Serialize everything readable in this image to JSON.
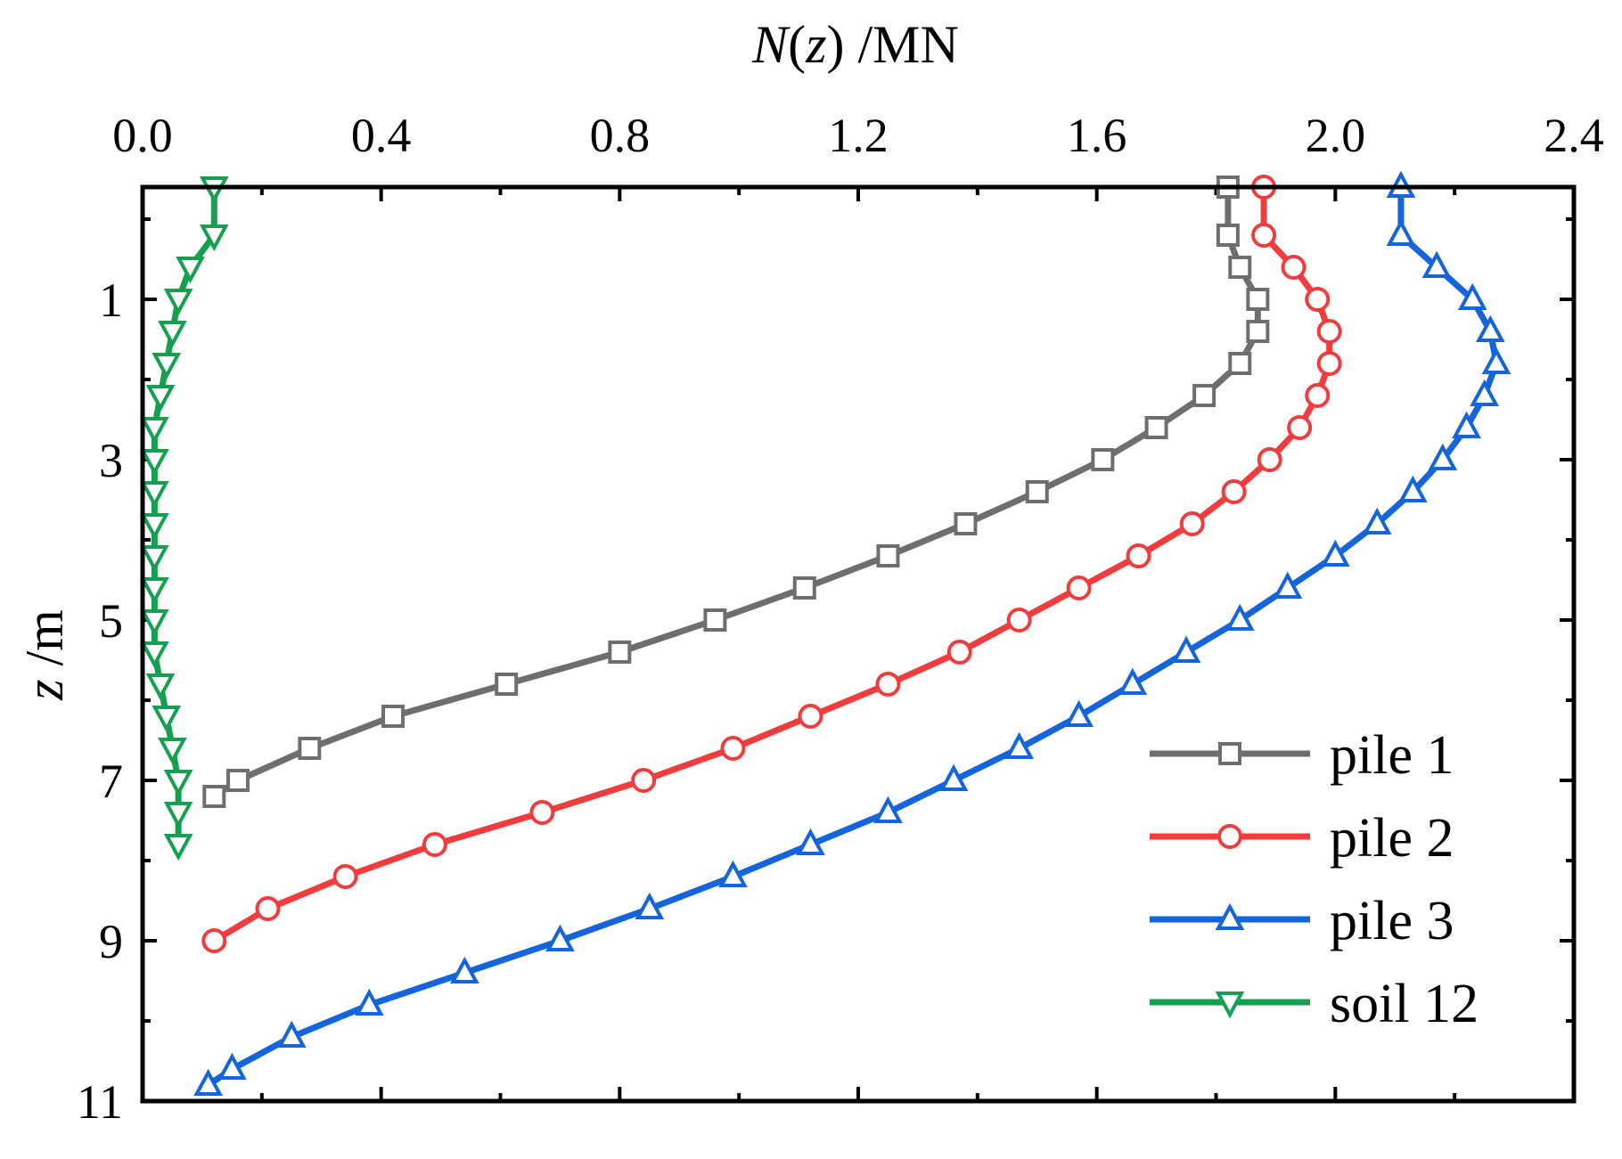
{
  "chart_data": {
    "type": "line",
    "xlabel_italic": "N",
    "xlabel_paren_open": "(",
    "xlabel_var": "z",
    "xlabel_paren_close": ")",
    "xlabel_unit": " /MN",
    "ylabel_italic": "z",
    "ylabel_unit": " /m",
    "x_axis_position": "top",
    "y_axis_inverted": true,
    "xlim": [
      0,
      2.4
    ],
    "ylim": [
      11,
      -0.4
    ],
    "x_ticks": [
      "0.0",
      "0.4",
      "0.8",
      "1.2",
      "1.6",
      "2.0",
      "2.4"
    ],
    "x_tick_values": [
      0,
      0.4,
      0.8,
      1.2,
      1.6,
      2.0,
      2.4
    ],
    "y_ticks": [
      "1",
      "3",
      "5",
      "7",
      "9",
      "11"
    ],
    "y_tick_values": [
      1,
      3,
      5,
      7,
      9,
      11
    ],
    "grid": false,
    "legend_position": "bottom-right",
    "series": [
      {
        "name": "pile 1",
        "color": "#6e6e6e",
        "marker": "square",
        "points": [
          [
            1.82,
            -0.4
          ],
          [
            1.82,
            0.2
          ],
          [
            1.84,
            0.6
          ],
          [
            1.87,
            1.0
          ],
          [
            1.87,
            1.4
          ],
          [
            1.84,
            1.8
          ],
          [
            1.78,
            2.2
          ],
          [
            1.7,
            2.6
          ],
          [
            1.61,
            3.0
          ],
          [
            1.5,
            3.4
          ],
          [
            1.38,
            3.8
          ],
          [
            1.25,
            4.2
          ],
          [
            1.11,
            4.6
          ],
          [
            0.96,
            5.0
          ],
          [
            0.8,
            5.4
          ],
          [
            0.61,
            5.8
          ],
          [
            0.42,
            6.2
          ],
          [
            0.28,
            6.6
          ],
          [
            0.16,
            7.0
          ],
          [
            0.12,
            7.2
          ]
        ]
      },
      {
        "name": "pile 2",
        "color": "#f03c3c",
        "marker": "circle",
        "points": [
          [
            1.88,
            -0.4
          ],
          [
            1.88,
            0.2
          ],
          [
            1.93,
            0.6
          ],
          [
            1.97,
            1.0
          ],
          [
            1.99,
            1.4
          ],
          [
            1.99,
            1.8
          ],
          [
            1.97,
            2.2
          ],
          [
            1.94,
            2.6
          ],
          [
            1.89,
            3.0
          ],
          [
            1.83,
            3.4
          ],
          [
            1.76,
            3.8
          ],
          [
            1.67,
            4.2
          ],
          [
            1.57,
            4.6
          ],
          [
            1.47,
            5.0
          ],
          [
            1.37,
            5.4
          ],
          [
            1.25,
            5.8
          ],
          [
            1.12,
            6.2
          ],
          [
            0.99,
            6.6
          ],
          [
            0.84,
            7.0
          ],
          [
            0.67,
            7.4
          ],
          [
            0.49,
            7.8
          ],
          [
            0.34,
            8.2
          ],
          [
            0.21,
            8.6
          ],
          [
            0.12,
            9.0
          ]
        ]
      },
      {
        "name": "pile 3",
        "color": "#1464dc",
        "marker": "triangle-up",
        "points": [
          [
            2.11,
            -0.4
          ],
          [
            2.11,
            0.2
          ],
          [
            2.17,
            0.6
          ],
          [
            2.23,
            1.0
          ],
          [
            2.26,
            1.4
          ],
          [
            2.27,
            1.8
          ],
          [
            2.25,
            2.2
          ],
          [
            2.22,
            2.6
          ],
          [
            2.18,
            3.0
          ],
          [
            2.13,
            3.4
          ],
          [
            2.07,
            3.8
          ],
          [
            2.0,
            4.2
          ],
          [
            1.92,
            4.6
          ],
          [
            1.84,
            5.0
          ],
          [
            1.75,
            5.4
          ],
          [
            1.66,
            5.8
          ],
          [
            1.57,
            6.2
          ],
          [
            1.47,
            6.6
          ],
          [
            1.36,
            7.0
          ],
          [
            1.25,
            7.4
          ],
          [
            1.12,
            7.8
          ],
          [
            0.99,
            8.2
          ],
          [
            0.85,
            8.6
          ],
          [
            0.7,
            9.0
          ],
          [
            0.54,
            9.4
          ],
          [
            0.38,
            9.8
          ],
          [
            0.25,
            10.2
          ],
          [
            0.15,
            10.6
          ],
          [
            0.11,
            10.8
          ]
        ]
      },
      {
        "name": "soil 12",
        "color": "#14a050",
        "marker": "triangle-down",
        "points": [
          [
            0.12,
            -0.4
          ],
          [
            0.12,
            0.2
          ],
          [
            0.08,
            0.6
          ],
          [
            0.06,
            1.0
          ],
          [
            0.05,
            1.4
          ],
          [
            0.04,
            1.8
          ],
          [
            0.03,
            2.2
          ],
          [
            0.02,
            2.6
          ],
          [
            0.02,
            3.0
          ],
          [
            0.02,
            3.4
          ],
          [
            0.02,
            3.8
          ],
          [
            0.02,
            4.2
          ],
          [
            0.02,
            4.6
          ],
          [
            0.02,
            5.0
          ],
          [
            0.02,
            5.4
          ],
          [
            0.03,
            5.8
          ],
          [
            0.04,
            6.2
          ],
          [
            0.05,
            6.6
          ],
          [
            0.06,
            7.0
          ],
          [
            0.06,
            7.4
          ],
          [
            0.06,
            7.8
          ]
        ]
      }
    ]
  }
}
